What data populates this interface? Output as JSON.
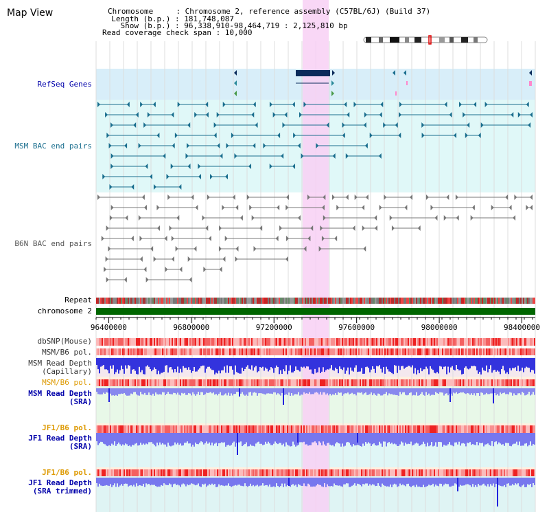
{
  "header": {
    "title": "Map View",
    "info_lines": [
      "Chromosome     : Chromosome 2, reference assembly (C57BL/6J) (Build 37)",
      "  Length (b.p.) : 181,748,087",
      "    Show (b.p.) : 96,338,910-98,464,719 : 2,125,810 bp",
      "Read coverage check span : 10,000"
    ]
  },
  "tracks": {
    "refseq": "RefSeq Genes",
    "msm_bac": "MSM BAC end pairs",
    "b6n_bac": "B6N BAC end pairs",
    "repeat": "Repeat",
    "chromosome": "chromosome 2",
    "dbsnp": "dbSNP(Mouse)",
    "msm_b6_pol_1": "MSM/B6 pol.",
    "msm_depth_cap_1": "MSM Read Depth",
    "msm_depth_cap_2": "(Capillary)",
    "msm_b6_pol_2": "MSM/B6 pol.",
    "msm_depth_sra_1": "MSM Read Depth",
    "msm_depth_sra_2": "(SRA)",
    "jf1_b6_pol_1": "JF1/B6 pol.",
    "jf1_depth_sra_1": "JF1 Read Depth",
    "jf1_depth_sra_2": "(SRA)",
    "jf1_b6_pol_2": "JF1/B6 pol.",
    "jf1_depth_trim_1": "JF1 Read Depth",
    "jf1_depth_trim_2": "(SRA trimmed)"
  },
  "axis": {
    "ticks": [
      "96400000",
      "96800000",
      "97200000",
      "97600000",
      "98000000",
      "98400000"
    ],
    "tick_values": [
      96400000,
      96800000,
      97200000,
      97600000,
      98000000,
      98400000
    ],
    "range": [
      96338910,
      98464719
    ]
  },
  "colors": {
    "refseq_bg": "#d8eef9",
    "msm_bg": "#e0f8f8",
    "b6n_bg": "#ffffff",
    "highlight": "#f8d0f4",
    "gene": "#0a2a5a",
    "msm_feature": "#1a6e8e",
    "b6n_feature": "#777777",
    "chromosome_bar": "#006600",
    "label_blue": "#0000aa",
    "label_orange": "#dd9900"
  }
}
